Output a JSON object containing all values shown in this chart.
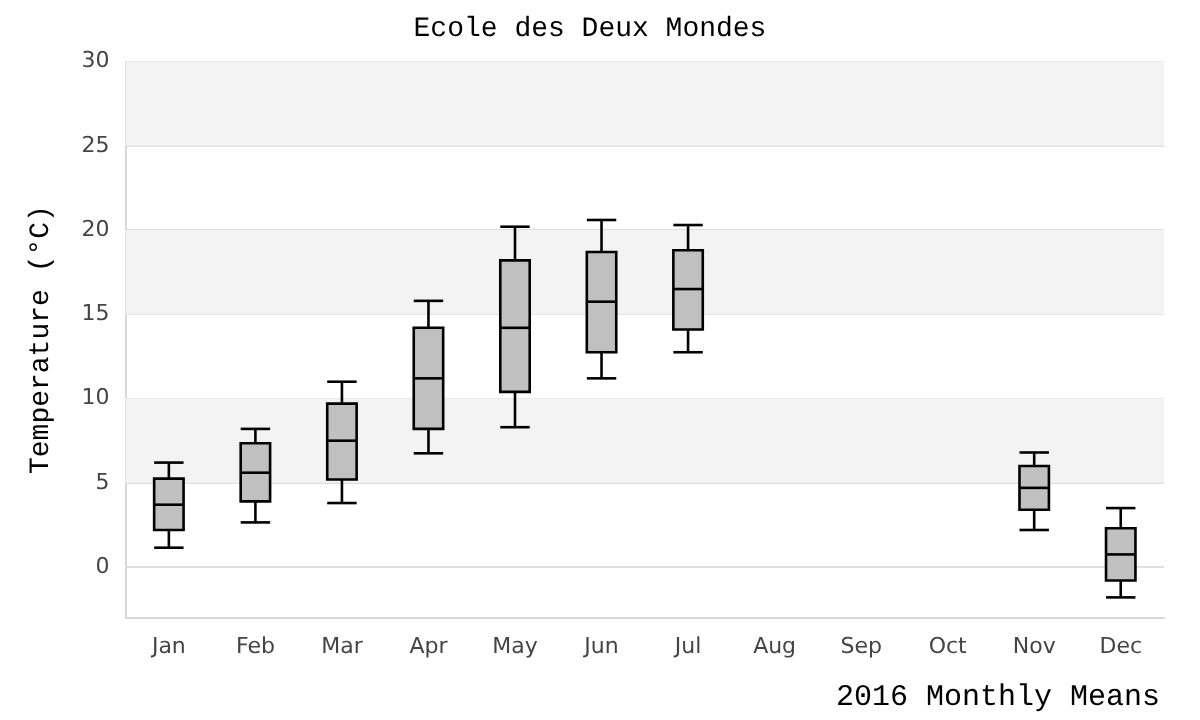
{
  "chart_data": {
    "type": "box",
    "title": "Ecole des Deux Mondes",
    "xlabel": "2016 Monthly Means",
    "ylabel": "Temperature (°C)",
    "categories": [
      "Jan",
      "Feb",
      "Mar",
      "Apr",
      "May",
      "Jun",
      "Jul",
      "Aug",
      "Sep",
      "Oct",
      "Nov",
      "Dec"
    ],
    "boxes": [
      {
        "low": 1.15,
        "q1": 2.2,
        "median": 3.7,
        "q3": 5.25,
        "high": 6.2
      },
      {
        "low": 2.65,
        "q1": 3.9,
        "median": 5.6,
        "q3": 7.35,
        "high": 8.2
      },
      {
        "low": 3.8,
        "q1": 5.2,
        "median": 7.5,
        "q3": 9.7,
        "high": 11.0
      },
      {
        "low": 6.75,
        "q1": 8.2,
        "median": 11.2,
        "q3": 14.2,
        "high": 15.8
      },
      {
        "low": 8.3,
        "q1": 10.4,
        "median": 14.2,
        "q3": 18.2,
        "high": 20.2
      },
      {
        "low": 11.2,
        "q1": 12.75,
        "median": 15.75,
        "q3": 18.7,
        "high": 20.6
      },
      {
        "low": 12.75,
        "q1": 14.1,
        "median": 16.5,
        "q3": 18.8,
        "high": 20.3
      },
      null,
      null,
      null,
      {
        "low": 2.2,
        "q1": 3.4,
        "median": 4.7,
        "q3": 6.0,
        "high": 6.8
      },
      {
        "low": -1.8,
        "q1": -0.8,
        "median": 0.75,
        "q3": 2.3,
        "high": 3.5
      }
    ],
    "color": "#c0c0c0",
    "ylim": [
      -3,
      30
    ],
    "yticks": [
      0,
      5,
      10,
      15,
      20,
      25,
      30
    ],
    "grid": "y",
    "legend": false
  }
}
